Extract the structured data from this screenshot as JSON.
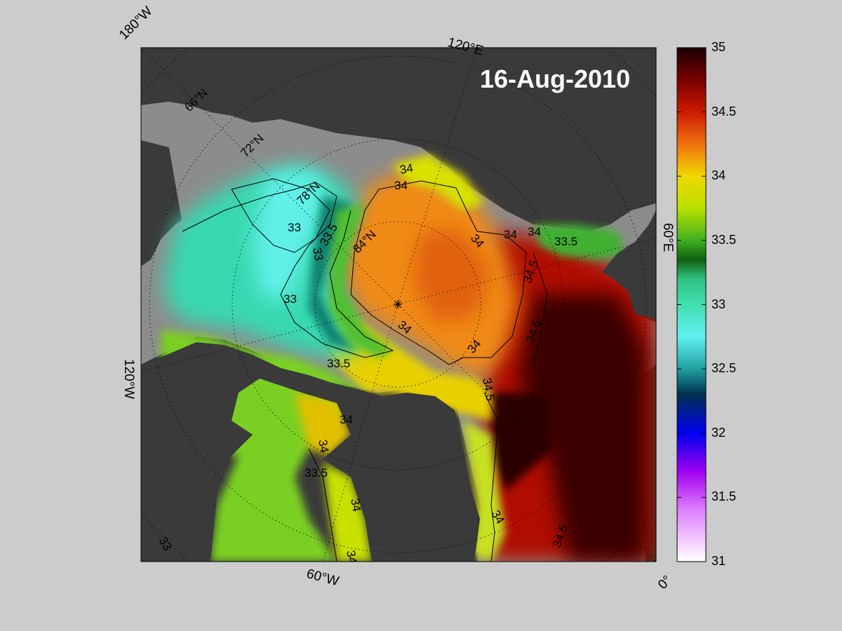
{
  "title": "16-Aug-2010",
  "colors": {
    "figure_background": "#cccccc",
    "land": "#3a3a3a",
    "masked_ocean": "#8c8c8c",
    "contour_line": "#000000",
    "graticule": "#000000"
  },
  "longitude_labels": {
    "w180": "180°W",
    "e120": "120°E",
    "e60": "60°E",
    "zero": "0°",
    "w120": "120°W",
    "w60": "60°W"
  },
  "latitude_labels": {
    "n66": "66°N",
    "n72": "72°N",
    "n78": "78°N",
    "n84": "84°N"
  },
  "contour_labels": [
    {
      "id": "c34-top",
      "text": "34"
    },
    {
      "id": "c34-top2",
      "text": "34"
    },
    {
      "id": "c33-a",
      "text": "33"
    },
    {
      "id": "c33-b",
      "text": "33"
    },
    {
      "id": "c33-c",
      "text": "33"
    },
    {
      "id": "c335-a",
      "text": "33.5"
    },
    {
      "id": "c34-right1",
      "text": "34"
    },
    {
      "id": "c34-right2",
      "text": "34"
    },
    {
      "id": "c34-right3",
      "text": "34"
    },
    {
      "id": "c335-right",
      "text": "33.5"
    },
    {
      "id": "c345-right1",
      "text": "34.5"
    },
    {
      "id": "c34-center",
      "text": "34"
    },
    {
      "id": "c345-right2",
      "text": "34.5"
    },
    {
      "id": "c34-mid",
      "text": "34"
    },
    {
      "id": "c335-mid",
      "text": "33.5"
    },
    {
      "id": "c345-mid",
      "text": "34.5"
    },
    {
      "id": "c34-low1",
      "text": "34"
    },
    {
      "id": "c34-low2",
      "text": "34"
    },
    {
      "id": "c335-low",
      "text": "33.5"
    },
    {
      "id": "c34-low3",
      "text": "34"
    },
    {
      "id": "c34-low4",
      "text": "34"
    },
    {
      "id": "c34-low5",
      "text": "34"
    },
    {
      "id": "c345-low",
      "text": "34.5"
    },
    {
      "id": "c33-low",
      "text": "33"
    }
  ],
  "colorbar": {
    "min": 31,
    "max": 35,
    "ticks": [
      "35",
      "34.5",
      "34",
      "33.5",
      "33",
      "32.5",
      "32",
      "31.5",
      "31"
    ],
    "stops": [
      {
        "value": 35.0,
        "color": "#1a0000"
      },
      {
        "value": 34.75,
        "color": "#7a0000"
      },
      {
        "value": 34.5,
        "color": "#cc1a00"
      },
      {
        "value": 34.25,
        "color": "#f07010"
      },
      {
        "value": 34.0,
        "color": "#f0d800"
      },
      {
        "value": 33.75,
        "color": "#b8e000"
      },
      {
        "value": 33.5,
        "color": "#40b020"
      },
      {
        "value": 33.35,
        "color": "#106010"
      },
      {
        "value": 33.2,
        "color": "#30c080"
      },
      {
        "value": 33.0,
        "color": "#40e0b0"
      },
      {
        "value": 32.75,
        "color": "#60f0f0"
      },
      {
        "value": 32.5,
        "color": "#20a0a0"
      },
      {
        "value": 32.3,
        "color": "#003050"
      },
      {
        "value": 32.0,
        "color": "#0000f0"
      },
      {
        "value": 31.7,
        "color": "#a000f0"
      },
      {
        "value": 31.4,
        "color": "#e080ff"
      },
      {
        "value": 31.0,
        "color": "#ffffff"
      }
    ]
  }
}
